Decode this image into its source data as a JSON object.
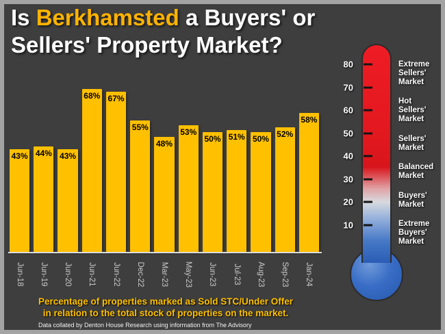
{
  "title": {
    "line1_prefix": "Is ",
    "line1_highlight": "Berkhamsted",
    "line1_suffix": " a Buyers' or",
    "line2": "Sellers' Property Market?"
  },
  "chart_data": {
    "type": "bar",
    "title": "Is Berkhamsted a Buyers' or Sellers' Property Market?",
    "categories": [
      "Jun-18",
      "Jun-19",
      "Jun-20",
      "Jun-21",
      "Jun-22",
      "Dec-22",
      "Mar-23",
      "May-23",
      "Jun-23",
      "Jul-23",
      "Aug-23",
      "Sep-23",
      "Jan-24"
    ],
    "values": [
      43,
      44,
      43,
      68,
      67,
      55,
      48,
      53,
      50,
      51,
      50,
      52,
      58
    ],
    "data_label_suffix": "%",
    "data_labels_position": "inside-top",
    "x_tick_rotation": 90,
    "xlabel": "",
    "ylabel": "",
    "ylim": [
      0,
      80
    ],
    "grid": false,
    "legend": false,
    "bar_color": "#FFC000"
  },
  "thermometer": {
    "ticks": [
      "80",
      "70",
      "60",
      "50",
      "40",
      "30",
      "20",
      "10"
    ],
    "zones": [
      "Extreme Sellers' Market",
      "Hot Sellers' Market",
      "Sellers' Market",
      "Balanced Market",
      "Buyers' Market",
      "Extreme Buyers' Market"
    ],
    "top_color": "#ee1c24",
    "bottom_color": "#2a5cb5"
  },
  "footer": {
    "caption_line1": "Percentage of properties marked as Sold STC/Under Offer",
    "caption_line2": "in relation to the total stock of properties on the market.",
    "source": "Data collated by Denton House Research using information from The Advisory"
  },
  "colors": {
    "background": "#3e3e3e",
    "frame": "#a3a3a3",
    "bar": "#FFC000",
    "highlight_text": "#FFB300",
    "caption": "#FFC000"
  }
}
